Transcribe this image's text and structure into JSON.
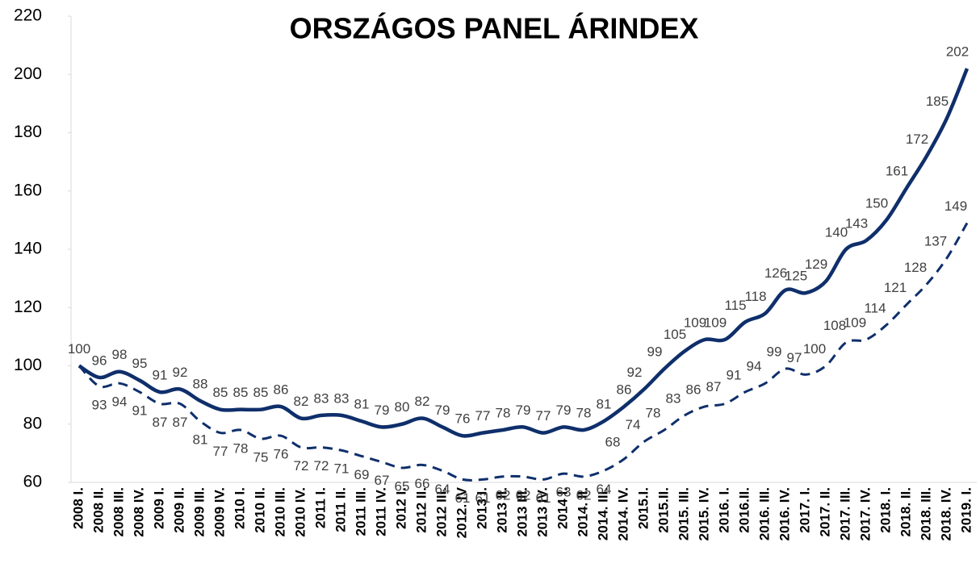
{
  "chart_data": {
    "type": "line",
    "title": "ORSZÁGOS PANEL ÁRINDEX",
    "categories": [
      "2008 I.",
      "2008 II.",
      "2008 III.",
      "2008 IV.",
      "2009 I.",
      "2009 II.",
      "2009 III.",
      "2009 IV.",
      "2010 I.",
      "2010 II.",
      "2010 III.",
      "2010 IV.",
      "2011 I.",
      "2011 II.",
      "2011 III.",
      "2011 IV.",
      "2012 I.",
      "2012 II.",
      "2012 III.",
      "2012. IV",
      "2013 I.",
      "2013 II.",
      "2013 III.",
      "2013 IV.",
      "2014 I.",
      "2014. II.",
      "2014. III.",
      "2014. IV.",
      "2015.I.",
      "2015.II.",
      "2015. III.",
      "2015. IV.",
      "2016. I.",
      "2016.II.",
      "2016. III.",
      "2016. IV.",
      "2017. I.",
      "2017. II.",
      "2017. III.",
      "2017. IV.",
      "2018. I.",
      "2018. II.",
      "2018. III.",
      "2018. IV.",
      "2019. I."
    ],
    "series": [
      {
        "color": "#0f2f6b",
        "dash": false,
        "values": [
          100,
          96,
          98,
          95,
          91,
          92,
          88,
          85,
          85,
          85,
          86,
          82,
          83,
          83,
          81,
          79,
          80,
          82,
          79,
          76,
          77,
          78,
          79,
          77,
          79,
          78,
          81,
          86,
          92,
          99,
          105,
          109,
          109,
          115,
          118,
          126,
          125,
          129,
          140,
          143,
          150,
          161,
          172,
          185,
          202
        ]
      },
      {
        "color": "#0f2f6b",
        "dash": true,
        "values": [
          100,
          93,
          94,
          91,
          87,
          87,
          81,
          77,
          78,
          75,
          76,
          72,
          72,
          71,
          69,
          67,
          65,
          66,
          64,
          61,
          61,
          62,
          62,
          61,
          63,
          62,
          64,
          68,
          74,
          78,
          83,
          86,
          87,
          91,
          94,
          99,
          97,
          100,
          108,
          109,
          114,
          121,
          128,
          137,
          149
        ]
      }
    ],
    "ylim": [
      60,
      220
    ],
    "yticks": [
      60,
      80,
      100,
      120,
      140,
      160,
      180,
      200,
      220
    ]
  }
}
